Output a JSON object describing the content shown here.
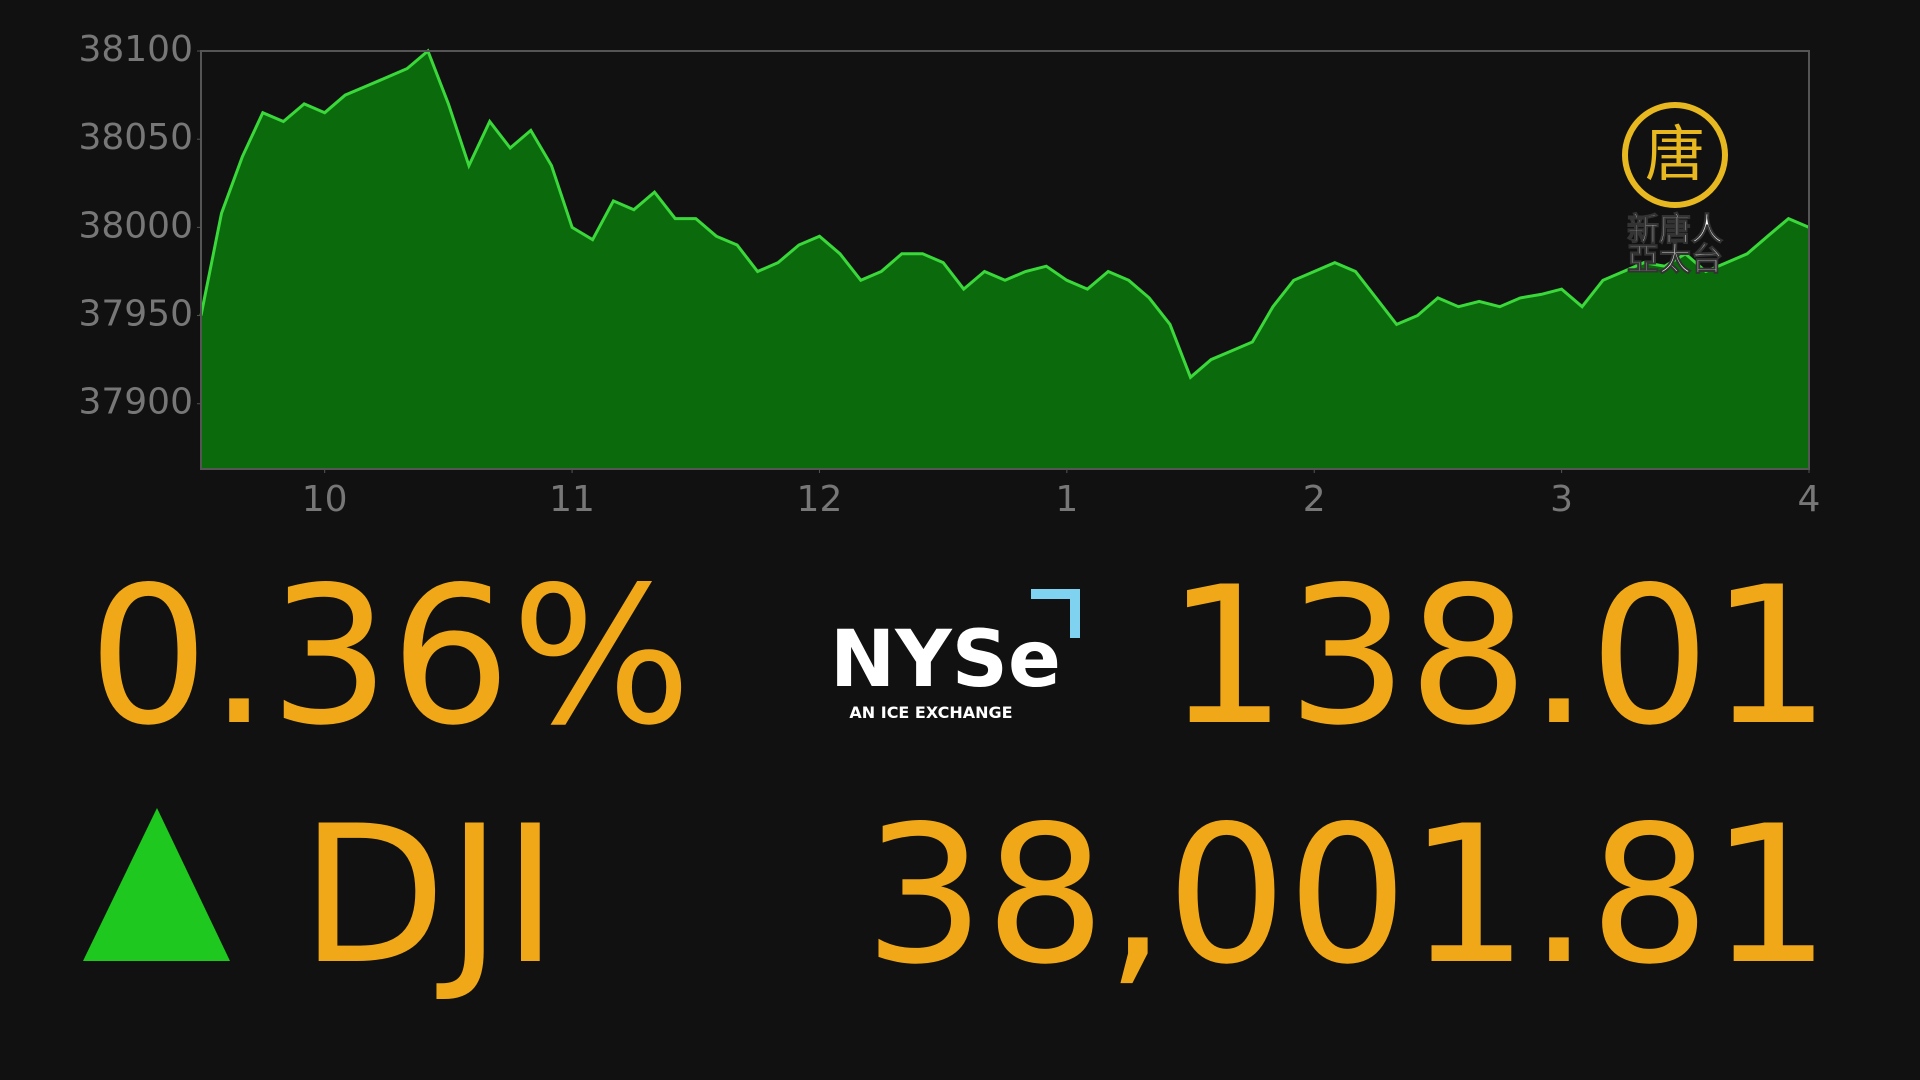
{
  "chart_data": {
    "type": "area",
    "x": [
      9.5,
      9.583,
      9.667,
      9.75,
      9.833,
      9.917,
      10,
      10.083,
      10.167,
      10.25,
      10.333,
      10.417,
      10.5,
      10.583,
      10.667,
      10.75,
      10.833,
      10.917,
      11,
      11.083,
      11.167,
      11.25,
      11.333,
      11.417,
      11.5,
      11.583,
      11.667,
      11.75,
      11.833,
      11.917,
      12,
      12.083,
      12.167,
      12.25,
      12.333,
      12.417,
      12.5,
      12.583,
      12.667,
      12.75,
      12.833,
      12.917,
      13,
      13.083,
      13.167,
      13.25,
      13.333,
      13.417,
      13.5,
      13.583,
      13.667,
      13.75,
      13.833,
      13.917,
      14,
      14.083,
      14.167,
      14.25,
      14.333,
      14.417,
      14.5,
      14.583,
      14.667,
      14.75,
      14.833,
      14.917,
      15,
      15.083,
      15.167,
      15.25,
      15.333,
      15.417,
      15.5,
      15.583,
      15.667,
      15.75,
      15.833,
      15.917,
      16
    ],
    "values": [
      37950,
      38008,
      38040,
      38065,
      38060,
      38070,
      38065,
      38075,
      38080,
      38085,
      38090,
      38100,
      38070,
      38035,
      38060,
      38045,
      38055,
      38035,
      38000,
      37993,
      38015,
      38010,
      38020,
      38005,
      38005,
      37995,
      37990,
      37975,
      37980,
      37990,
      37995,
      37985,
      37970,
      37975,
      37985,
      37985,
      37980,
      37965,
      37975,
      37970,
      37975,
      37978,
      37970,
      37965,
      37975,
      37970,
      37960,
      37945,
      37915,
      37925,
      37930,
      37935,
      37955,
      37970,
      37975,
      37980,
      37975,
      37960,
      37945,
      37950,
      37960,
      37955,
      37958,
      37955,
      37960,
      37962,
      37965,
      37955,
      37970,
      37975,
      37980,
      37978,
      37985,
      37975,
      37980,
      37985,
      37995,
      38005,
      38000
    ],
    "color": "#3ad83a",
    "fill": "#0b6a0b",
    "xlim": [
      9.5,
      16
    ],
    "xticks": [
      10,
      11,
      12,
      {
        "value": 13,
        "label": "1"
      },
      {
        "value": 14,
        "label": "2"
      },
      {
        "value": 15,
        "label": "3"
      },
      {
        "value": 16,
        "label": "4"
      }
    ],
    "ylim": [
      37863,
      38100
    ],
    "yticks": [
      37900,
      37950,
      38000,
      38050,
      38100
    ]
  },
  "quote": {
    "change_percent": "0.36%",
    "change_points": "138.01",
    "symbol": "DJI",
    "price": "38,001.81"
  },
  "exchange": {
    "name": "NYSe",
    "tagline": "AN ICE EXCHANGE"
  },
  "broadcaster": {
    "emblem": "唐",
    "line1": "新唐人",
    "line2": "亞太台"
  }
}
